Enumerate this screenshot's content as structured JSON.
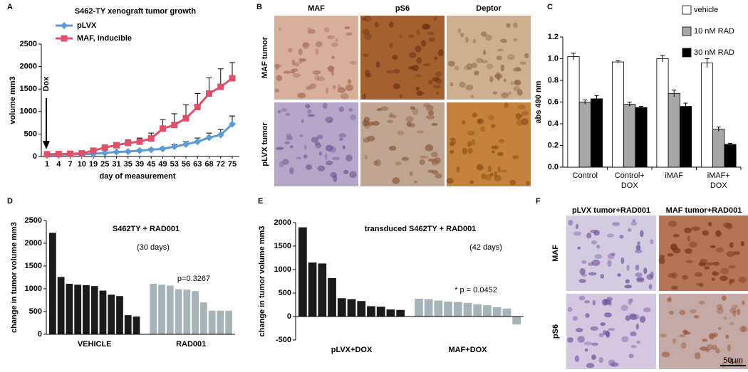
{
  "chart_data": [
    {
      "panel": "A",
      "type": "line",
      "title": "S462-TY xenograft tumor growth",
      "xlabel": "day of measurement",
      "ylabel": "volume mm3",
      "annotation": "Dox",
      "categories": [
        "1",
        "4",
        "7",
        "10",
        "19",
        "25",
        "31",
        "35",
        "39",
        "45",
        "49",
        "53",
        "56",
        "63",
        "68",
        "72",
        "75"
      ],
      "series": [
        {
          "name": "pLVX",
          "color": "#5b9bd5",
          "marker": "diamond",
          "values": [
            40,
            40,
            45,
            50,
            60,
            80,
            100,
            110,
            130,
            150,
            170,
            220,
            270,
            330,
            420,
            480,
            720
          ],
          "errors": [
            10,
            10,
            10,
            10,
            10,
            15,
            20,
            20,
            20,
            25,
            30,
            40,
            60,
            80,
            100,
            120,
            180
          ]
        },
        {
          "name": "MAF, inducible",
          "color": "#e0506a",
          "marker": "square",
          "values": [
            50,
            55,
            60,
            70,
            130,
            200,
            250,
            300,
            330,
            400,
            620,
            700,
            850,
            1100,
            1400,
            1550,
            1740
          ],
          "errors": [
            10,
            10,
            10,
            20,
            40,
            60,
            60,
            70,
            80,
            120,
            200,
            250,
            300,
            300,
            350,
            400,
            350
          ]
        }
      ],
      "ylim": [
        0,
        2500
      ],
      "yticks": [
        0,
        500,
        1000,
        1500,
        2000,
        2500
      ]
    },
    {
      "panel": "C",
      "type": "bar",
      "ylabel": "abs 490 nm",
      "legend": "top-right",
      "categories": [
        "Control",
        "Control+ DOX",
        "iMAF",
        "iMAF+ DOX"
      ],
      "series": [
        {
          "name": "vehicle",
          "color": "#ffffff",
          "values": [
            1.02,
            0.97,
            1.0,
            0.96
          ],
          "errors": [
            0.03,
            0.01,
            0.03,
            0.04
          ]
        },
        {
          "name": "10 nM RAD",
          "color": "#a6a6a6",
          "values": [
            0.6,
            0.58,
            0.68,
            0.35
          ],
          "errors": [
            0.02,
            0.02,
            0.03,
            0.02
          ]
        },
        {
          "name": "30 nM RAD",
          "color": "#000000",
          "values": [
            0.63,
            0.55,
            0.56,
            0.21
          ],
          "errors": [
            0.03,
            0.01,
            0.03,
            0.01
          ]
        }
      ],
      "ylim": [
        0,
        1.2
      ],
      "yticks": [
        {
          "value": 0,
          "label": "0.0"
        },
        {
          "value": 0.2,
          "label": "0.2"
        },
        {
          "value": 0.4,
          "label": "0.4"
        },
        {
          "value": 0.6,
          "label": "0.6"
        },
        {
          "value": 0.8,
          "label": "0.8"
        },
        {
          "value": 1,
          "label": "1.0"
        },
        {
          "value": 1.2,
          "label": "1.2"
        }
      ]
    },
    {
      "panel": "D",
      "type": "waterfall",
      "title": "S462TY + RAD001",
      "subtitle": "(30 days)",
      "annotation": "p=0.3267",
      "ylabel": "change in tumor volume mm3",
      "series": [
        {
          "name": "VEHICLE",
          "color": "#1a1a1a",
          "values": [
            2230,
            1260,
            1110,
            1090,
            1080,
            1060,
            960,
            870,
            840,
            420,
            390
          ]
        },
        {
          "name": "RAD001",
          "color": "#a6b3b8",
          "values": [
            1110,
            1090,
            1070,
            990,
            980,
            950,
            700,
            520,
            520,
            520
          ]
        }
      ],
      "ylim": [
        0,
        2500
      ],
      "yticks": [
        0,
        500,
        1000,
        1500,
        2000,
        2500
      ]
    },
    {
      "panel": "E",
      "type": "waterfall",
      "title": "transduced S462TY + RAD001",
      "subtitle": "(42 days)",
      "annotation": "* p = 0.0452",
      "ylabel": "change in tumor volume mm3",
      "series": [
        {
          "name": "pLVX+DOX",
          "color": "#1a1a1a",
          "values": [
            1900,
            1150,
            1130,
            820,
            390,
            370,
            330,
            220,
            210,
            150,
            140
          ]
        },
        {
          "name": "MAF+DOX",
          "color": "#a6b3b8",
          "values": [
            380,
            370,
            340,
            320,
            310,
            290,
            260,
            240,
            200,
            170,
            -170
          ]
        }
      ],
      "ylim": [
        -500,
        2000
      ],
      "yticks": [
        -500,
        0,
        500,
        1000,
        1500,
        2000
      ]
    }
  ],
  "micrographs": [
    {
      "panel": "B",
      "columns": [
        "MAF",
        "pS6",
        "Deptor"
      ],
      "rows": [
        "MAF tumor",
        "pLVX tumor"
      ]
    },
    {
      "panel": "F",
      "columns": [
        "pLVX tumor+RAD001",
        "MAF tumor+RAD001"
      ],
      "rows": [
        "MAF",
        "pS6"
      ],
      "scale_bar": "50µm"
    }
  ]
}
